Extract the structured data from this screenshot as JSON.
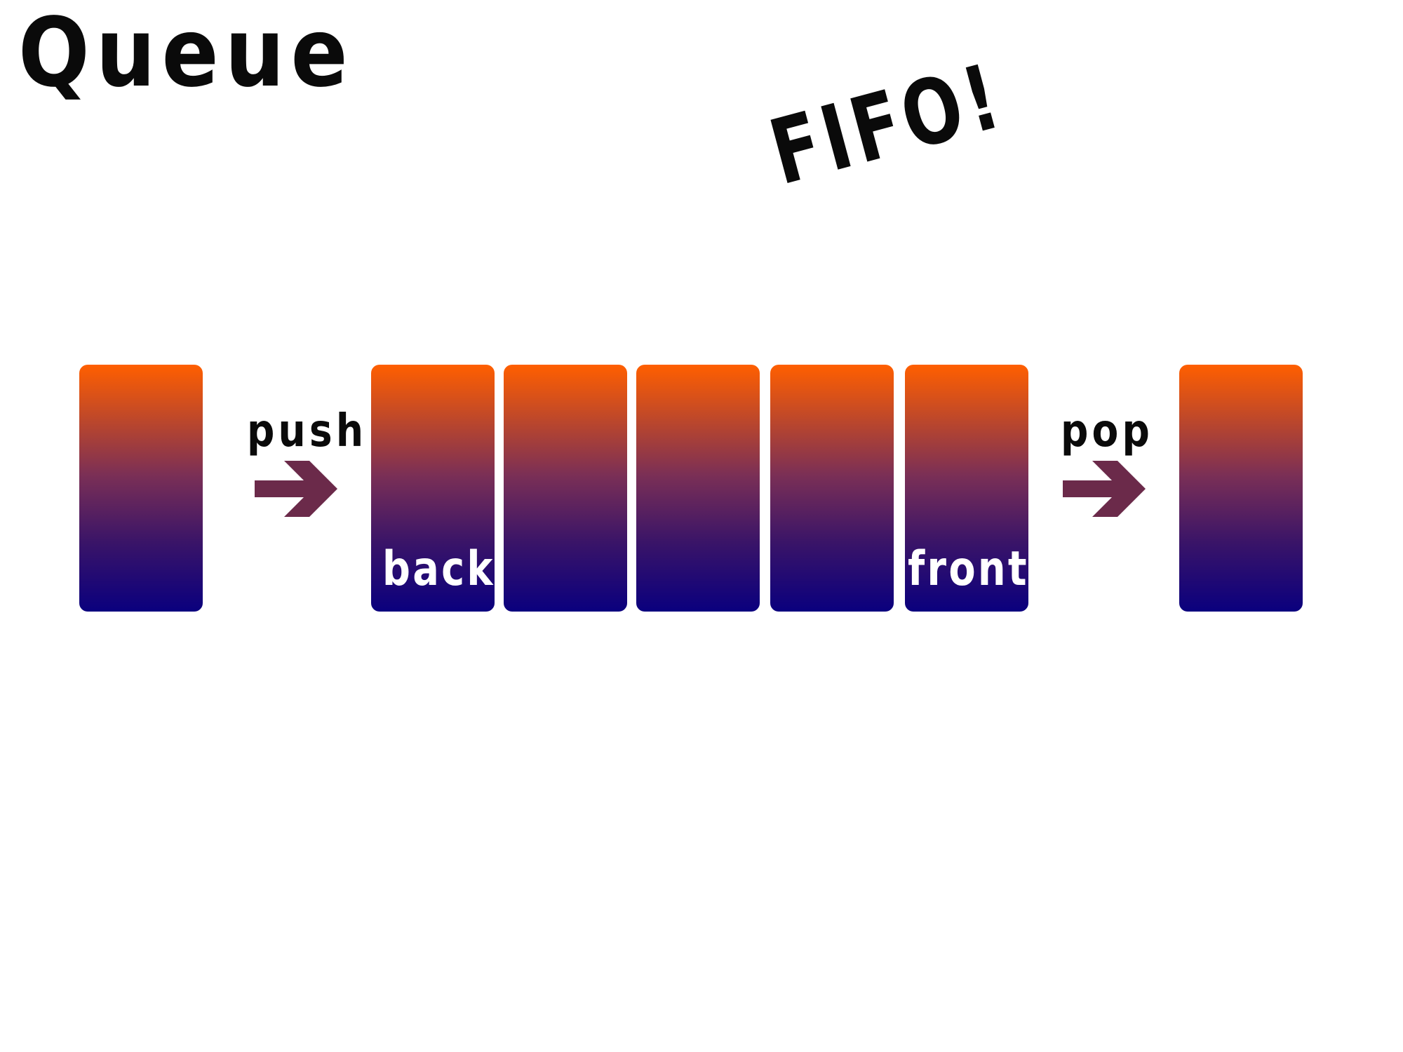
{
  "title": "Queue",
  "tagline": "FIFO!",
  "operations": {
    "push_label": "push",
    "pop_label": "pop"
  },
  "queue": {
    "back_label": "back",
    "front_label": "front",
    "slot_count": 5
  },
  "colors": {
    "gradient_top": "#ff5f00",
    "gradient_bottom": "#0a007e",
    "arrow": "#6b2a4a",
    "text": "#0a0a0a",
    "label_on_block": "#ffffff"
  },
  "icons": {
    "push_arrow": "right-arrow-icon",
    "pop_arrow": "right-arrow-icon"
  }
}
